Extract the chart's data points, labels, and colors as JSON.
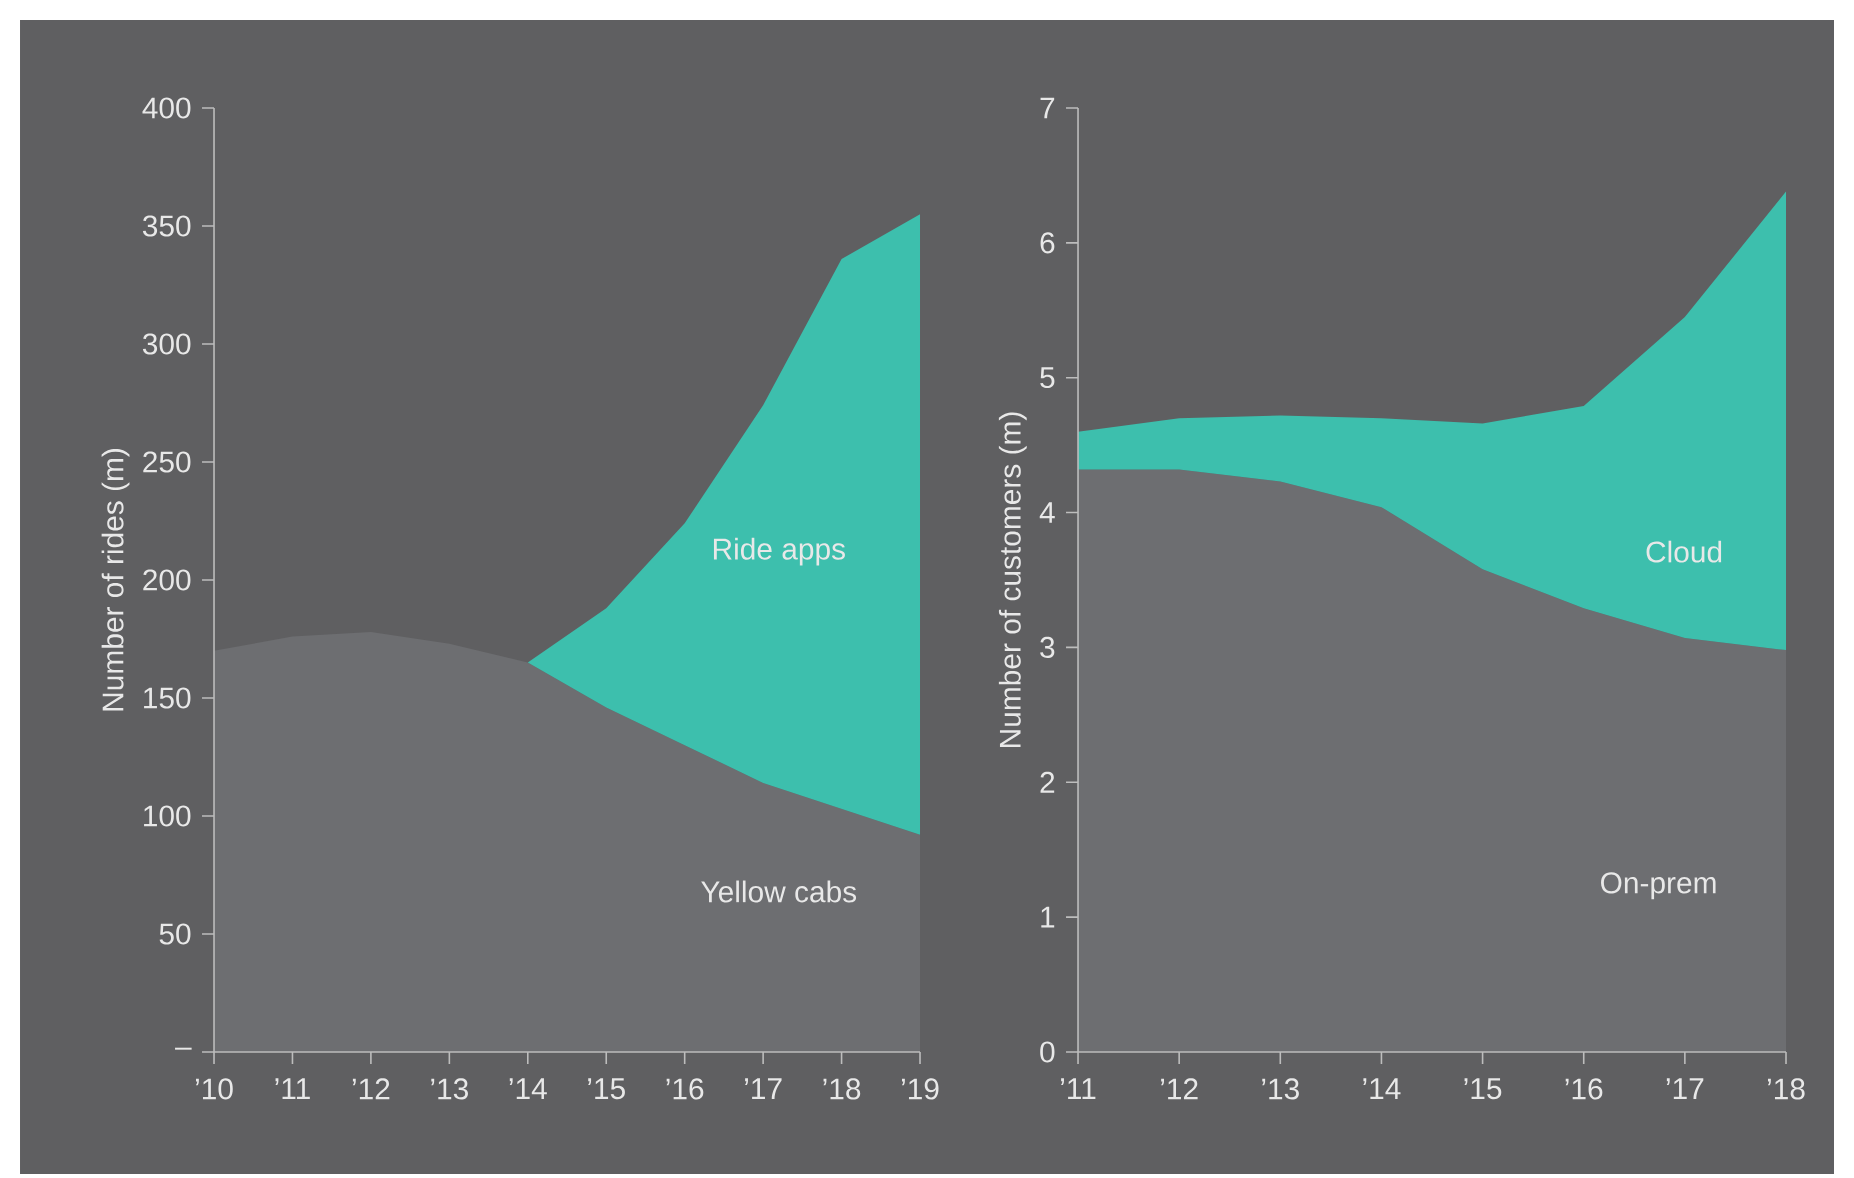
{
  "chart_data": [
    {
      "type": "area",
      "stacked": true,
      "ylabel": "Number of rides (m)",
      "categories": [
        "’10",
        "’11",
        "’12",
        "’13",
        "’14",
        "’15",
        "’16",
        "’17",
        "’18",
        "’19"
      ],
      "series": [
        {
          "name": "Yellow cabs",
          "color": "#6d6e71",
          "values": [
            170,
            176,
            178,
            173,
            165,
            146,
            130,
            114,
            103,
            92
          ]
        },
        {
          "name": "Ride apps",
          "color": "#3dbfad",
          "values": [
            null,
            null,
            null,
            null,
            0,
            42,
            94,
            160,
            233,
            263
          ]
        }
      ],
      "ylim": [
        0,
        400
      ],
      "yticks": [
        {
          "value": 0,
          "label": "–"
        },
        50,
        100,
        150,
        200,
        250,
        300,
        350,
        400
      ]
    },
    {
      "type": "area",
      "stacked": true,
      "ylabel": "Number of customers (m)",
      "categories": [
        "’11",
        "’12",
        "’13",
        "’14",
        "’15",
        "’16",
        "’17",
        "’18"
      ],
      "series": [
        {
          "name": "On-prem",
          "color": "#6d6e71",
          "values": [
            4.32,
            4.32,
            4.23,
            4.04,
            3.58,
            3.29,
            3.07,
            2.98
          ]
        },
        {
          "name": "Cloud",
          "color": "#3dbfad",
          "values": [
            0.28,
            0.38,
            0.49,
            0.66,
            1.08,
            1.5,
            2.38,
            3.4
          ]
        }
      ],
      "ylim": [
        0,
        7
      ],
      "yticks": [
        0,
        1,
        2,
        3,
        4,
        5,
        6,
        7
      ]
    }
  ]
}
